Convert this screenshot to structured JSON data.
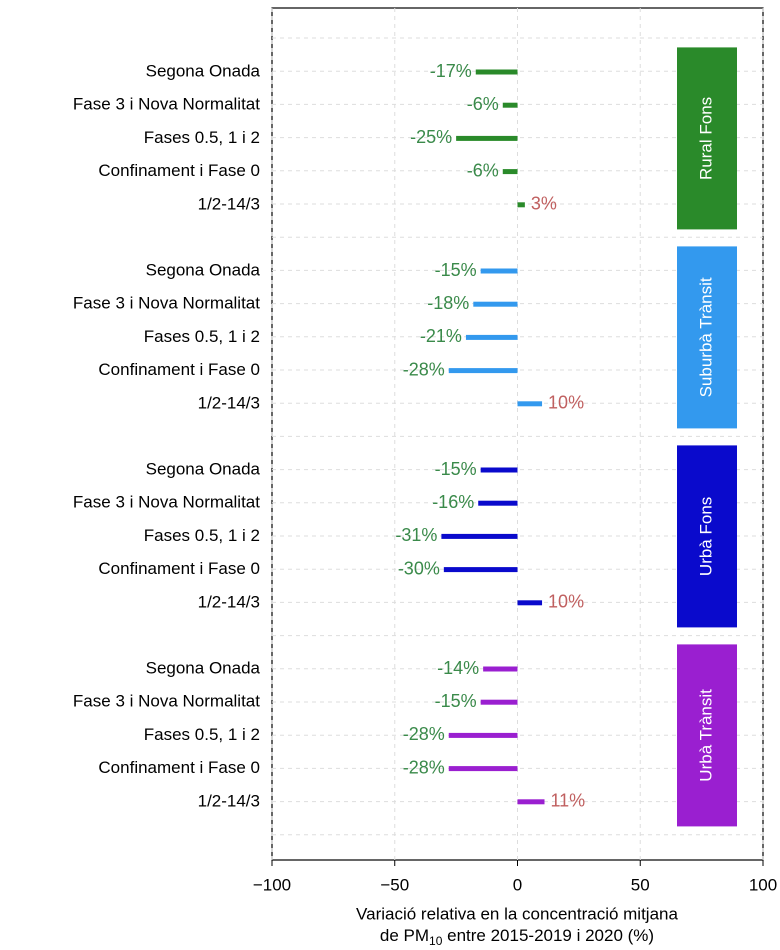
{
  "chart_data": {
    "type": "bar",
    "orientation": "horizontal",
    "categories": [
      "Segona Onada",
      "Fase 3 i Nova Normalitat",
      "Fases 0.5, 1 i 2",
      "Confinament i Fase 0",
      "1/2-14/3"
    ],
    "series": [
      {
        "name": "Rural Fons",
        "color": "#2a8a2a",
        "values": [
          -17,
          -6,
          -25,
          -6,
          3
        ],
        "value_labels": [
          "-17%",
          "-6%",
          "-25%",
          "-6%",
          "3%"
        ]
      },
      {
        "name": "Suburbà Trànsit",
        "color": "#3399ee",
        "values": [
          -15,
          -18,
          -21,
          -28,
          10
        ],
        "value_labels": [
          "-15%",
          "-18%",
          "-21%",
          "-28%",
          "10%"
        ]
      },
      {
        "name": "Urbà Fons",
        "color": "#0a0acc",
        "values": [
          -15,
          -16,
          -31,
          -30,
          10
        ],
        "value_labels": [
          "-15%",
          "-16%",
          "-31%",
          "-30%",
          "10%"
        ]
      },
      {
        "name": "Urbà Trànsit",
        "color": "#9a1fd0",
        "values": [
          -14,
          -15,
          -28,
          -28,
          11
        ],
        "value_labels": [
          "-14%",
          "-15%",
          "-28%",
          "-28%",
          "11%"
        ]
      }
    ],
    "negative_label_color": "#3a8a4a",
    "positive_label_color": "#c06060",
    "xlim": [
      -100,
      100
    ],
    "xticks": [
      {
        "value": -100,
        "label": "−100"
      },
      {
        "value": -50,
        "label": "−50"
      },
      0,
      50,
      100
    ],
    "grid": true,
    "xlabel": {
      "line1": "Variació relativa en la concentració mitjana",
      "line2_start": "de PM",
      "line2_sub": "10",
      "line2_end": " entre 2015-2019 i 2020 (%)"
    }
  }
}
